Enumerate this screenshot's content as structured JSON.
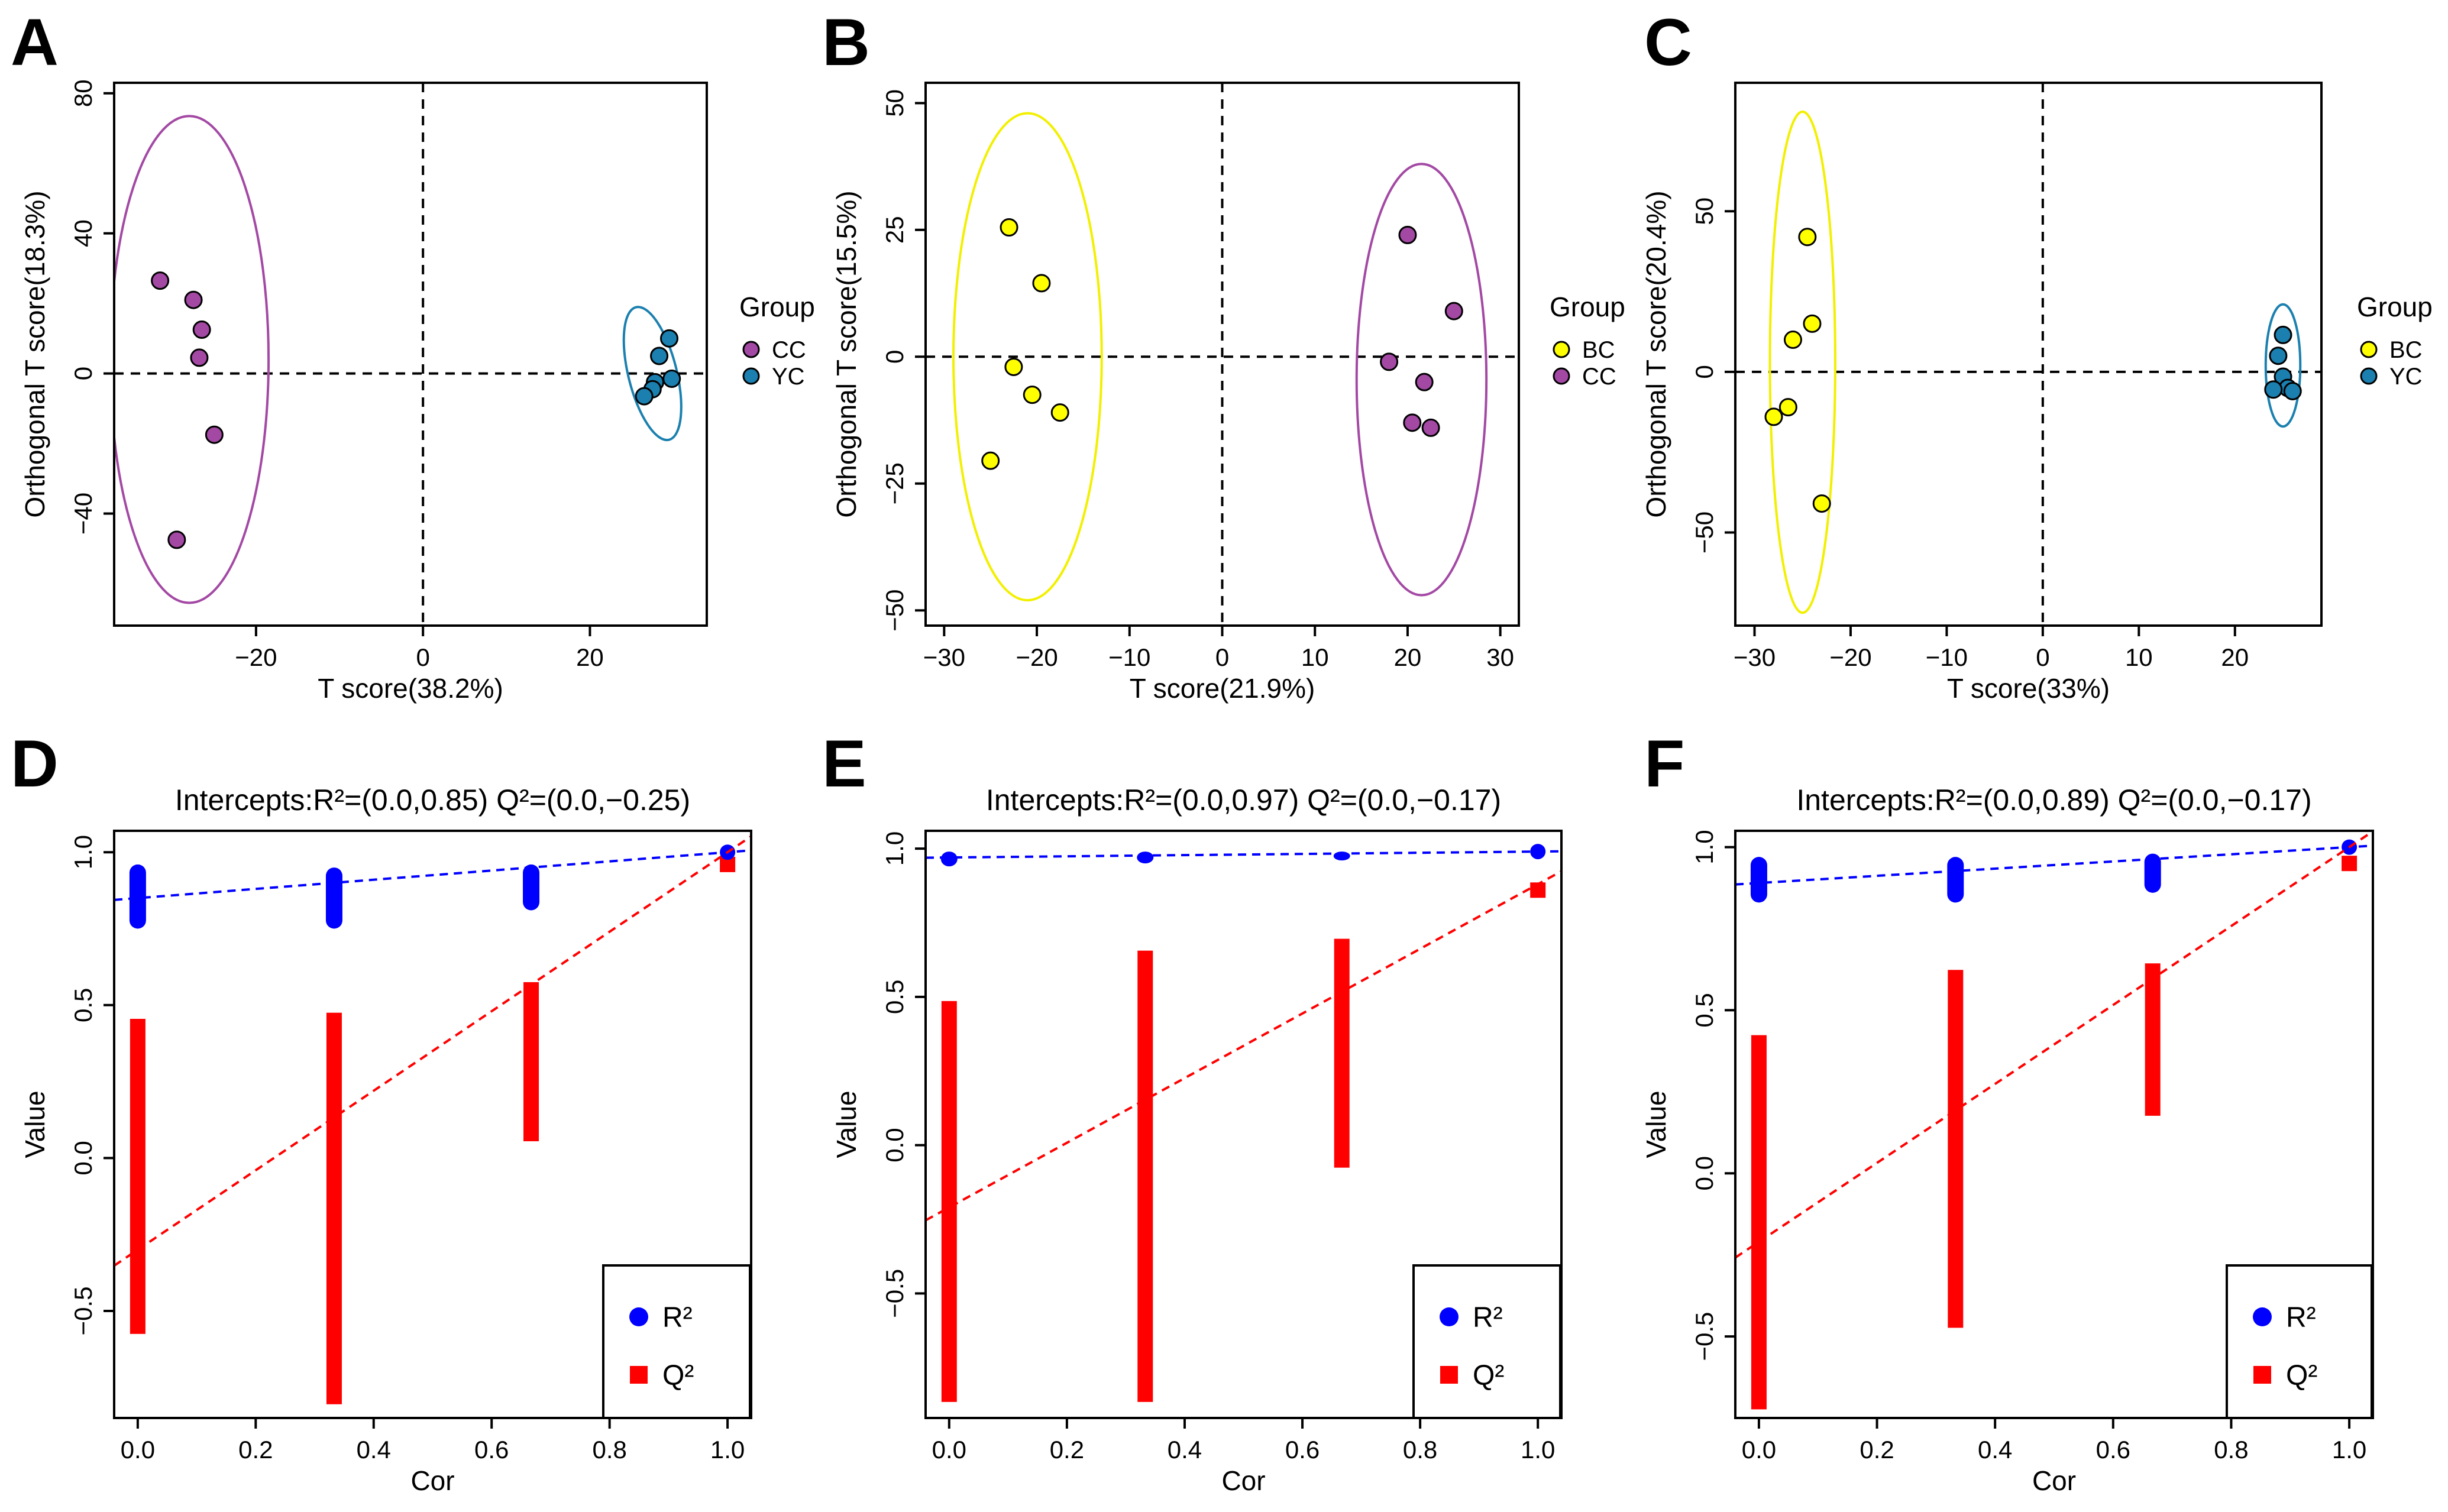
{
  "chart_data": [
    {
      "panel": "A",
      "type": "scatter",
      "xlabel": "T score(38.2%)",
      "ylabel": "Orthogonal T score(18.3%)",
      "xlim": [
        -37,
        34
      ],
      "ylim": [
        -72,
        83
      ],
      "xticks": [
        -20,
        0,
        20
      ],
      "yticks": [
        -40,
        0,
        40,
        80
      ],
      "legend_title": "Group",
      "series": [
        {
          "name": "CC",
          "color": "#A349A4",
          "points": [
            [
              -31.5,
              26.5
            ],
            [
              -27.5,
              21
            ],
            [
              -26.5,
              12.5
            ],
            [
              -26.8,
              4.5
            ],
            [
              -25,
              -17.5
            ],
            [
              -29.5,
              -47.5
            ]
          ],
          "ellipse": {
            "cx": -28,
            "cy": 4,
            "rx": 9.5,
            "ry": 69.5,
            "angle": 0
          }
        },
        {
          "name": "YC",
          "color": "#1B80AF",
          "points": [
            [
              29.5,
              10
            ],
            [
              28.3,
              5
            ],
            [
              29.8,
              -1.5
            ],
            [
              27.8,
              -2.5
            ],
            [
              27.5,
              -4.5
            ],
            [
              26.5,
              -6.5
            ]
          ],
          "ellipse": {
            "cx": 27.5,
            "cy": 0,
            "rx": 2.9,
            "ry": 19.5,
            "angle": 14
          }
        }
      ]
    },
    {
      "panel": "B",
      "type": "scatter",
      "xlabel": "T score(21.9%)",
      "ylabel": "Orthogonal T score(15.5%)",
      "xlim": [
        -32,
        32
      ],
      "ylim": [
        -53,
        54
      ],
      "xticks": [
        -30,
        -20,
        -10,
        0,
        10,
        20,
        30
      ],
      "yticks": [
        -50,
        -25,
        0,
        25,
        50
      ],
      "legend_title": "Group",
      "series": [
        {
          "name": "BC",
          "color": "#FFFF00",
          "points": [
            [
              -23,
              25.5
            ],
            [
              -19.5,
              14.5
            ],
            [
              -22.5,
              -2
            ],
            [
              -20.5,
              -7.5
            ],
            [
              -17.5,
              -11
            ],
            [
              -25,
              -20.5
            ]
          ],
          "ellipse": {
            "cx": -21,
            "cy": 0,
            "rx": 8,
            "ry": 48,
            "angle": 0
          }
        },
        {
          "name": "CC",
          "color": "#A349A4",
          "points": [
            [
              20,
              24
            ],
            [
              25,
              9
            ],
            [
              18,
              -1
            ],
            [
              21.8,
              -5
            ],
            [
              20.5,
              -13
            ],
            [
              22.5,
              -14
            ]
          ],
          "ellipse": {
            "cx": 21.5,
            "cy": -4.5,
            "rx": 7,
            "ry": 42.5,
            "angle": 0
          }
        }
      ]
    },
    {
      "panel": "C",
      "type": "scatter",
      "xlabel": "T score(33%)",
      "ylabel": "Orthogonal T score(20.4%)",
      "xlim": [
        -32,
        29
      ],
      "ylim": [
        -79,
        90
      ],
      "xticks": [
        -30,
        -20,
        -10,
        0,
        10,
        20
      ],
      "yticks": [
        -50,
        0,
        50
      ],
      "legend_title": "Group",
      "series": [
        {
          "name": "BC",
          "color": "#FFFF00",
          "points": [
            [
              -24.5,
              42
            ],
            [
              -24,
              15
            ],
            [
              -26,
              10
            ],
            [
              -26.5,
              -11
            ],
            [
              -28,
              -14
            ],
            [
              -23,
              -41
            ]
          ],
          "ellipse": {
            "cx": -25,
            "cy": 3,
            "rx": 3.4,
            "ry": 78,
            "angle": 0
          }
        },
        {
          "name": "YC",
          "color": "#1B80AF",
          "points": [
            [
              25,
              11.5
            ],
            [
              24.5,
              5
            ],
            [
              25,
              -1.5
            ],
            [
              25.5,
              -5
            ],
            [
              24,
              -5.5
            ],
            [
              26,
              -6
            ]
          ],
          "ellipse": {
            "cx": 25,
            "cy": 2,
            "rx": 1.8,
            "ry": 19,
            "angle": 0
          }
        }
      ]
    },
    {
      "panel": "D",
      "type": "scatter",
      "title": "Intercepts:R²=(0.0,0.85) Q²=(0.0,−0.25)",
      "xlabel": "Cor",
      "ylabel": "Value",
      "xlim": [
        -0.04,
        1.04
      ],
      "ylim": [
        -0.85,
        1.07
      ],
      "xticks": [
        0.0,
        0.2,
        0.4,
        0.6,
        0.8,
        1.0
      ],
      "xtick_labels": [
        "0.0",
        "0.2",
        "0.4",
        "0.6",
        "0.8",
        "1.0"
      ],
      "yticks": [
        -0.5,
        0.0,
        0.5,
        1.0
      ],
      "ytick_labels": [
        "−0.5",
        "0.0",
        "0.5",
        "1.0"
      ],
      "legend": [
        "R²",
        "Q²"
      ],
      "r2": {
        "color": "#0000FF",
        "columns": [
          {
            "x": 0.0,
            "min": 0.75,
            "max": 0.96
          },
          {
            "x": 0.333,
            "min": 0.75,
            "max": 0.95
          },
          {
            "x": 0.667,
            "min": 0.81,
            "max": 0.96
          }
        ],
        "points": [
          [
            1.0,
            1.0
          ]
        ],
        "line": [
          0.85,
          1.0
        ]
      },
      "q2": {
        "color": "#FF0000",
        "columns": [
          {
            "x": 0.0,
            "min": -0.55,
            "max": 0.43
          },
          {
            "x": 0.333,
            "min": -0.78,
            "max": 0.45
          },
          {
            "x": 0.667,
            "min": 0.08,
            "max": 0.55
          }
        ],
        "points": [
          [
            1.0,
            0.96
          ]
        ],
        "line": [
          -0.3,
          1.0
        ]
      }
    },
    {
      "panel": "E",
      "type": "scatter",
      "title": "Intercepts:R²=(0.0,0.97) Q²=(0.0,−0.17)",
      "xlabel": "Cor",
      "ylabel": "Value",
      "xlim": [
        -0.04,
        1.04
      ],
      "ylim": [
        -0.92,
        1.06
      ],
      "xticks": [
        0.0,
        0.2,
        0.4,
        0.6,
        0.8,
        1.0
      ],
      "xtick_labels": [
        "0.0",
        "0.2",
        "0.4",
        "0.6",
        "0.8",
        "1.0"
      ],
      "yticks": [
        -0.5,
        0.0,
        0.5,
        1.0
      ],
      "ytick_labels": [
        "−0.5",
        "0.0",
        "0.5",
        "1.0"
      ],
      "legend": [
        "R²",
        "Q²"
      ],
      "r2": {
        "color": "#0000FF",
        "columns": [
          {
            "x": 0.0,
            "min": 0.94,
            "max": 0.99
          },
          {
            "x": 0.333,
            "min": 0.95,
            "max": 0.99
          },
          {
            "x": 0.667,
            "min": 0.96,
            "max": 0.99
          }
        ],
        "points": [
          [
            1.0,
            0.99
          ]
        ],
        "line": [
          0.97,
          0.99
        ]
      },
      "q2": {
        "color": "#FF0000",
        "columns": [
          {
            "x": 0.0,
            "min": -0.84,
            "max": 0.46
          },
          {
            "x": 0.333,
            "min": -0.84,
            "max": 0.63
          },
          {
            "x": 0.667,
            "min": -0.05,
            "max": 0.67
          }
        ],
        "points": [
          [
            1.0,
            0.86
          ]
        ],
        "line": [
          -0.21,
          0.88
        ]
      }
    },
    {
      "panel": "F",
      "type": "scatter",
      "title": "Intercepts:R²=(0.0,0.89) Q²=(0.0,−0.17)",
      "xlabel": "Cor",
      "ylabel": "Value",
      "xlim": [
        -0.04,
        1.04
      ],
      "ylim": [
        -0.75,
        1.05
      ],
      "xticks": [
        0.0,
        0.2,
        0.4,
        0.6,
        0.8,
        1.0
      ],
      "xtick_labels": [
        "0.0",
        "0.2",
        "0.4",
        "0.6",
        "0.8",
        "1.0"
      ],
      "yticks": [
        -0.5,
        0.0,
        0.5,
        1.0
      ],
      "ytick_labels": [
        "−0.5",
        "0.0",
        "0.5",
        "1.0"
      ],
      "legend": [
        "R²",
        "Q²"
      ],
      "r2": {
        "color": "#0000FF",
        "columns": [
          {
            "x": 0.0,
            "min": 0.83,
            "max": 0.97
          },
          {
            "x": 0.333,
            "min": 0.83,
            "max": 0.97
          },
          {
            "x": 0.667,
            "min": 0.86,
            "max": 0.98
          }
        ],
        "points": [
          [
            1.0,
            1.0
          ]
        ],
        "line": [
          0.89,
          1.0
        ]
      },
      "q2": {
        "color": "#FF0000",
        "columns": [
          {
            "x": 0.0,
            "min": -0.7,
            "max": 0.4
          },
          {
            "x": 0.333,
            "min": -0.45,
            "max": 0.6
          },
          {
            "x": 0.667,
            "min": 0.2,
            "max": 0.62
          }
        ],
        "points": [
          [
            1.0,
            0.95
          ]
        ],
        "line": [
          -0.21,
          1.0
        ]
      }
    }
  ]
}
